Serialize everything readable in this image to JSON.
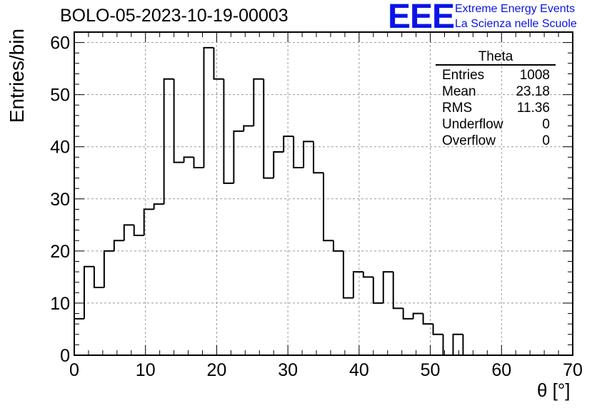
{
  "title": "BOLO-05-2023-10-19-00003",
  "logo": {
    "mark": "EEE",
    "line1": "Extreme Energy Events",
    "line2": "La Scienza nelle Scuole",
    "color": "#0a14e6"
  },
  "stats_box": {
    "title": "Theta",
    "rows": [
      {
        "label": "Entries",
        "value": "1008"
      },
      {
        "label": "Mean",
        "value": "23.18"
      },
      {
        "label": "RMS",
        "value": "11.36"
      },
      {
        "label": "Underflow",
        "value": "0"
      },
      {
        "label": "Overflow",
        "value": "0"
      }
    ]
  },
  "chart_data": {
    "type": "bar",
    "style": "step-histogram",
    "title": "BOLO-05-2023-10-19-00003",
    "xlabel": "θ [°]",
    "ylabel": "Entries/bin",
    "xlim": [
      0,
      70
    ],
    "ylim": [
      0,
      62
    ],
    "bin_width": 1.4,
    "bin_edges_start": 0,
    "values": [
      7,
      17,
      13,
      20,
      22,
      25,
      23,
      28,
      29,
      53,
      37,
      38,
      36,
      59,
      53,
      33,
      43,
      44,
      53,
      34,
      39,
      42,
      36,
      41,
      35,
      22,
      20,
      11,
      16,
      15,
      10,
      16,
      9,
      7,
      8,
      6,
      4,
      0,
      4,
      0,
      0,
      0,
      0,
      0,
      0,
      0,
      0,
      0,
      0,
      0
    ],
    "x_ticks": [
      "0",
      "10",
      "20",
      "30",
      "40",
      "50",
      "60",
      "70"
    ],
    "y_ticks": [
      "0",
      "10",
      "20",
      "30",
      "40",
      "50",
      "60"
    ],
    "grid": true,
    "line_color": "#000000"
  }
}
